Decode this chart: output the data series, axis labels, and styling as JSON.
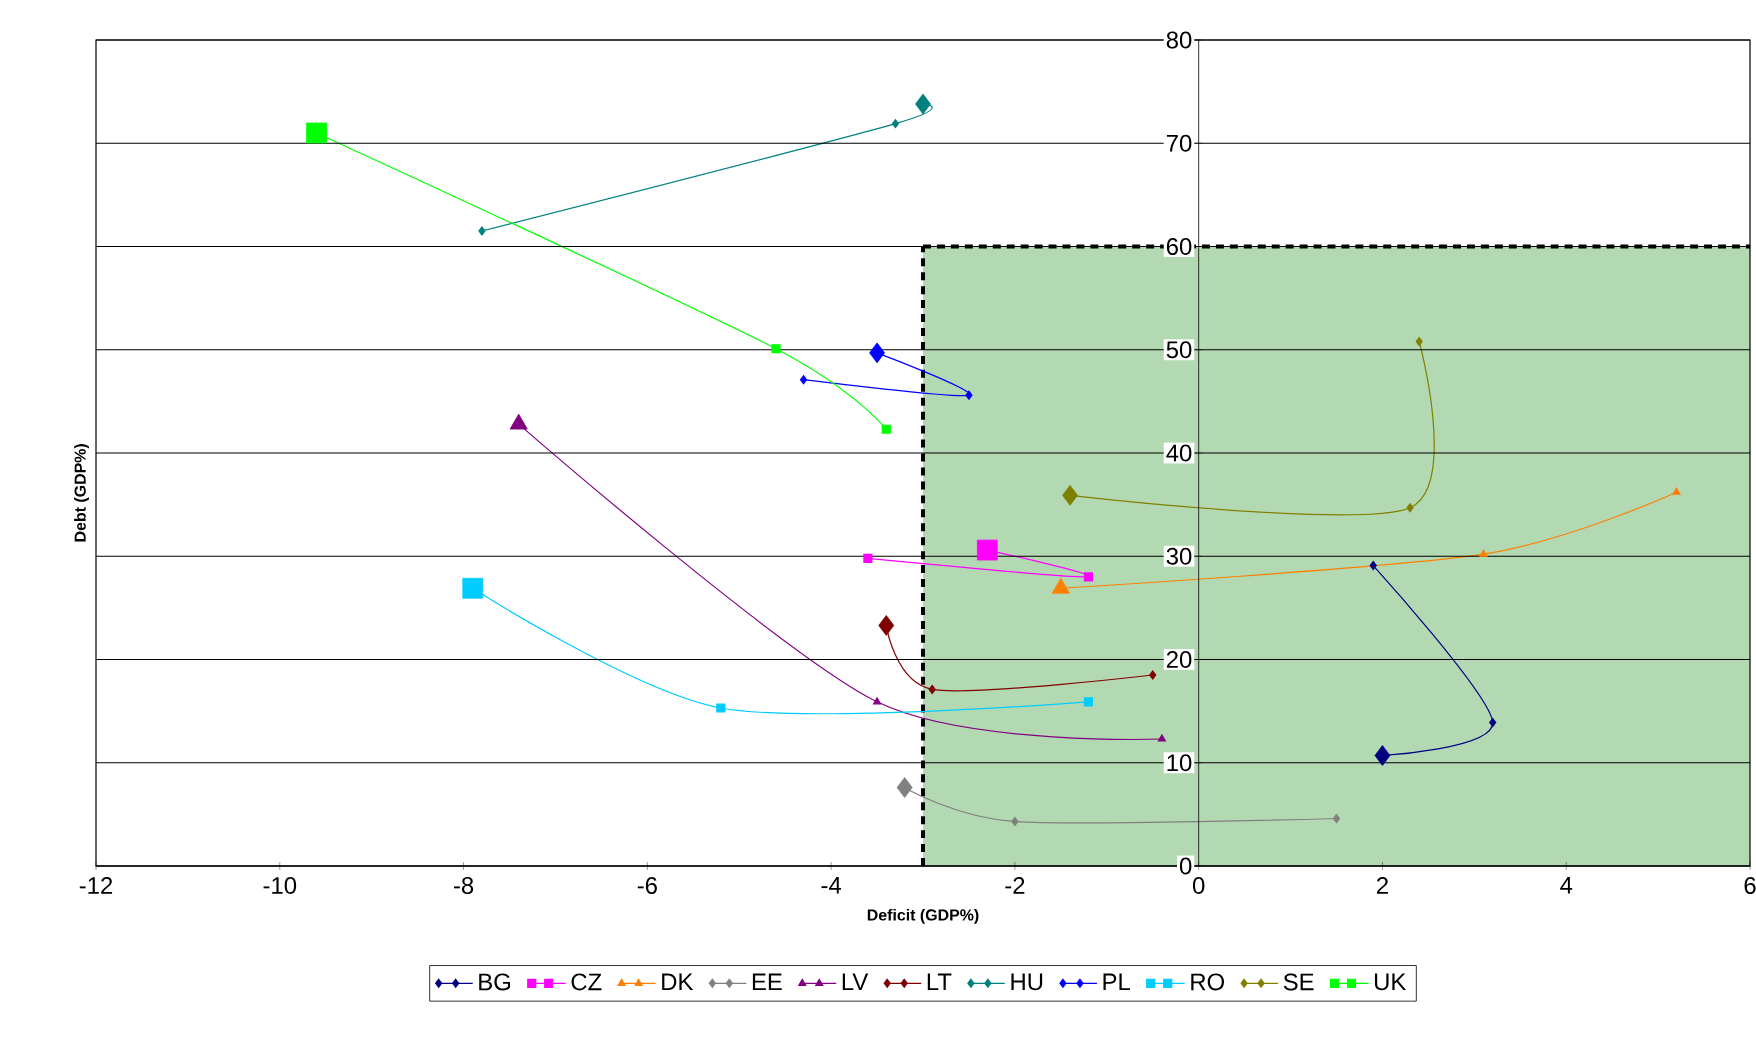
{
  "chart_data": {
    "type": "line",
    "xlabel": "Deficit (GDP%)",
    "ylabel": "Debt (GDP%)",
    "xlim": [
      -12,
      6
    ],
    "xticks": [
      -12,
      -10,
      -8,
      -6,
      -4,
      -2,
      0,
      2,
      4,
      6
    ],
    "ylim": [
      0,
      80
    ],
    "yticks": [
      0,
      10,
      20,
      30,
      40,
      50,
      60,
      70,
      80
    ],
    "grid": "y",
    "legend": "bottom",
    "bands": [
      {
        "axis": "x",
        "from": -3,
        "to": 6,
        "color": "#b3d9b3"
      }
    ],
    "ref_lines": [
      {
        "axis": "x",
        "value": -3,
        "line_style": "dashed"
      },
      {
        "axis": "y",
        "value": 60,
        "line_style": "dashed"
      }
    ],
    "series": [
      {
        "name": "BG",
        "color": "#000080",
        "marker": "diamond",
        "x": [
          1.9,
          3.2,
          2.0
        ],
        "values": [
          29.1,
          13.9,
          10.7
        ]
      },
      {
        "name": "CZ",
        "color": "#ff00ff",
        "marker": "square",
        "x": [
          -3.6,
          -1.2,
          -2.3
        ],
        "values": [
          29.8,
          28.0,
          30.6
        ]
      },
      {
        "name": "DK",
        "color": "#ff8000",
        "marker": "triangle",
        "x": [
          5.2,
          3.1,
          -1.5
        ],
        "values": [
          36.2,
          30.2,
          26.9
        ]
      },
      {
        "name": "EE",
        "color": "#808080",
        "marker": "diamond",
        "x": [
          1.5,
          -2.0,
          -3.2
        ],
        "values": [
          4.6,
          4.3,
          7.6
        ]
      },
      {
        "name": "LV",
        "color": "#800080",
        "marker": "triangle",
        "x": [
          -0.4,
          -3.5,
          -7.4
        ],
        "values": [
          12.3,
          15.9,
          42.8
        ]
      },
      {
        "name": "LT",
        "color": "#800000",
        "marker": "diamond",
        "x": [
          -0.5,
          -2.9,
          -3.4
        ],
        "values": [
          18.5,
          17.1,
          23.3
        ]
      },
      {
        "name": "HU",
        "color": "#008080",
        "marker": "diamond",
        "x": [
          -7.8,
          -3.3,
          -3.0
        ],
        "values": [
          61.5,
          71.9,
          73.8
        ]
      },
      {
        "name": "PL",
        "color": "#0000ff",
        "marker": "diamond",
        "x": [
          -4.3,
          -2.5,
          -3.5
        ],
        "values": [
          47.1,
          45.6,
          49.7
        ]
      },
      {
        "name": "RO",
        "color": "#00ccff",
        "marker": "square",
        "x": [
          -1.2,
          -5.2,
          -7.9
        ],
        "values": [
          15.9,
          15.3,
          26.9
        ]
      },
      {
        "name": "SE",
        "color": "#808000",
        "marker": "diamond",
        "x": [
          2.4,
          2.3,
          -1.4
        ],
        "values": [
          50.8,
          34.7,
          35.9
        ]
      },
      {
        "name": "UK",
        "color": "#00ff00",
        "marker": "square",
        "x": [
          -3.4,
          -4.6,
          -9.6
        ],
        "values": [
          42.3,
          50.1,
          71.0
        ]
      }
    ]
  }
}
